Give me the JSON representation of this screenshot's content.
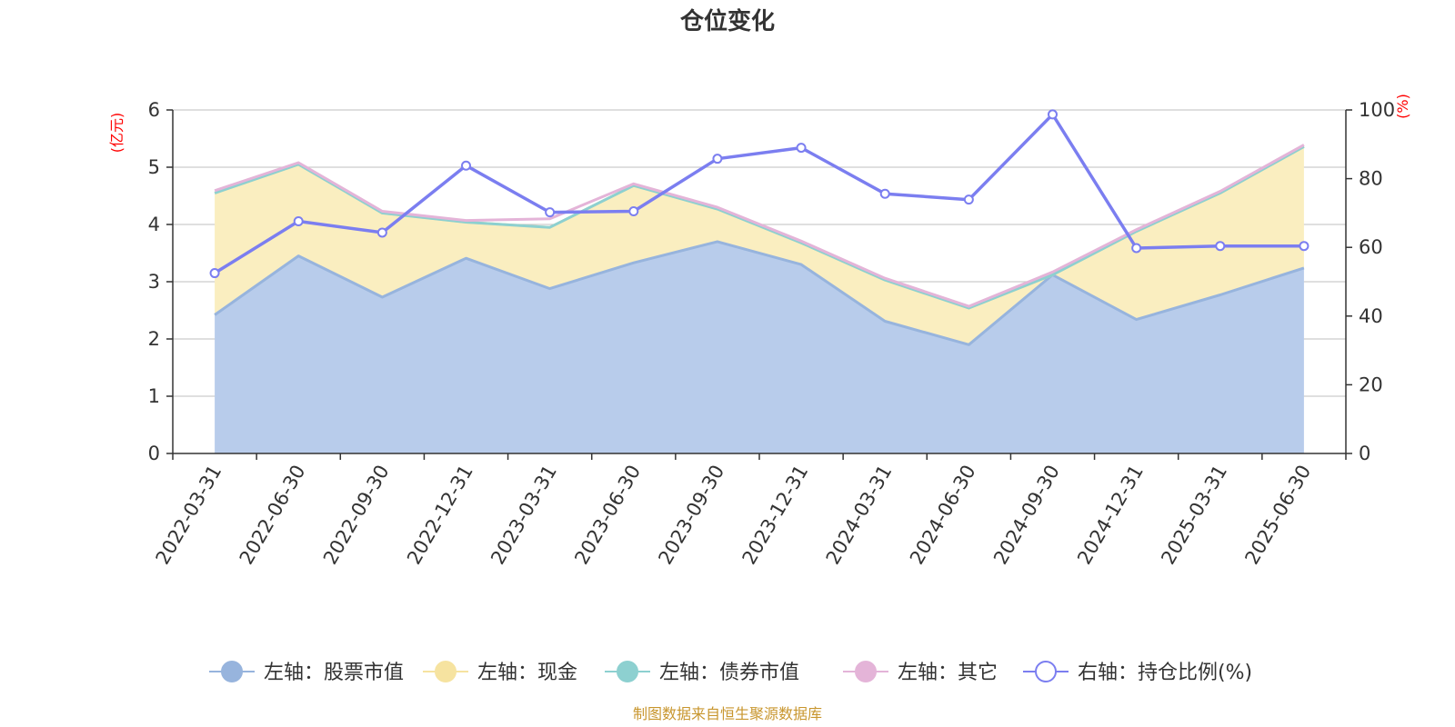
{
  "title": "仓位变化",
  "left_unit": "(亿元)",
  "right_unit": "(%)",
  "source": "制图数据来自恒生聚源数据库",
  "colors": {
    "stock_fill": "#b8cceb",
    "stock_line": "#97b4dd",
    "cash_fill": "#faeec0",
    "cash_line": "#f6e3a0",
    "bond": "#8dd0d0",
    "other_line": "#e4b4d8",
    "ratio": "#7b7ef0"
  },
  "chart_data": {
    "type": "area",
    "categories": [
      "2022-03-31",
      "2022-06-30",
      "2022-09-30",
      "2022-12-31",
      "2023-03-31",
      "2023-06-30",
      "2023-09-30",
      "2023-12-31",
      "2024-03-31",
      "2024-06-30",
      "2024-09-30",
      "2024-12-31",
      "2025-03-31",
      "2025-06-30"
    ],
    "left_axis": {
      "min": 0,
      "max": 6,
      "ticks": [
        "0",
        "1",
        "2",
        "3",
        "4",
        "5",
        "6"
      ]
    },
    "right_axis": {
      "min": 0,
      "max": 100,
      "ticks": [
        "0",
        "20",
        "40",
        "60",
        "80",
        "100"
      ]
    },
    "series": [
      {
        "name": "左轴：股票市值",
        "axis": "left",
        "stack": "total",
        "values": [
          2.42,
          3.45,
          2.73,
          3.41,
          2.88,
          3.33,
          3.7,
          3.3,
          2.31,
          1.9,
          3.12,
          2.34,
          2.77,
          3.24
        ]
      },
      {
        "name": "左轴：现金",
        "axis": "left",
        "stack": "total",
        "values": [
          2.13,
          1.6,
          1.47,
          0.63,
          1.07,
          1.35,
          0.57,
          0.38,
          0.72,
          0.64,
          0.0,
          1.54,
          1.78,
          2.12
        ]
      },
      {
        "name": "左轴：债券市值",
        "axis": "left",
        "stack": "total",
        "values": [
          0,
          0,
          0,
          0,
          0,
          0,
          0,
          0,
          0,
          0,
          0,
          0,
          0,
          0
        ]
      },
      {
        "name": "左轴：其它",
        "axis": "left",
        "stack": "total",
        "values": [
          0.04,
          0.03,
          0.03,
          0.03,
          0.15,
          0.03,
          0.03,
          0.03,
          0.03,
          0.03,
          0.05,
          0.03,
          0.03,
          0.03
        ]
      },
      {
        "name": "右轴：持仓比例(%)",
        "axis": "right",
        "values": [
          52.5,
          67.6,
          64.3,
          83.8,
          70.2,
          70.5,
          85.8,
          89.0,
          75.6,
          73.9,
          98.7,
          59.8,
          60.4,
          60.4
        ]
      }
    ]
  }
}
